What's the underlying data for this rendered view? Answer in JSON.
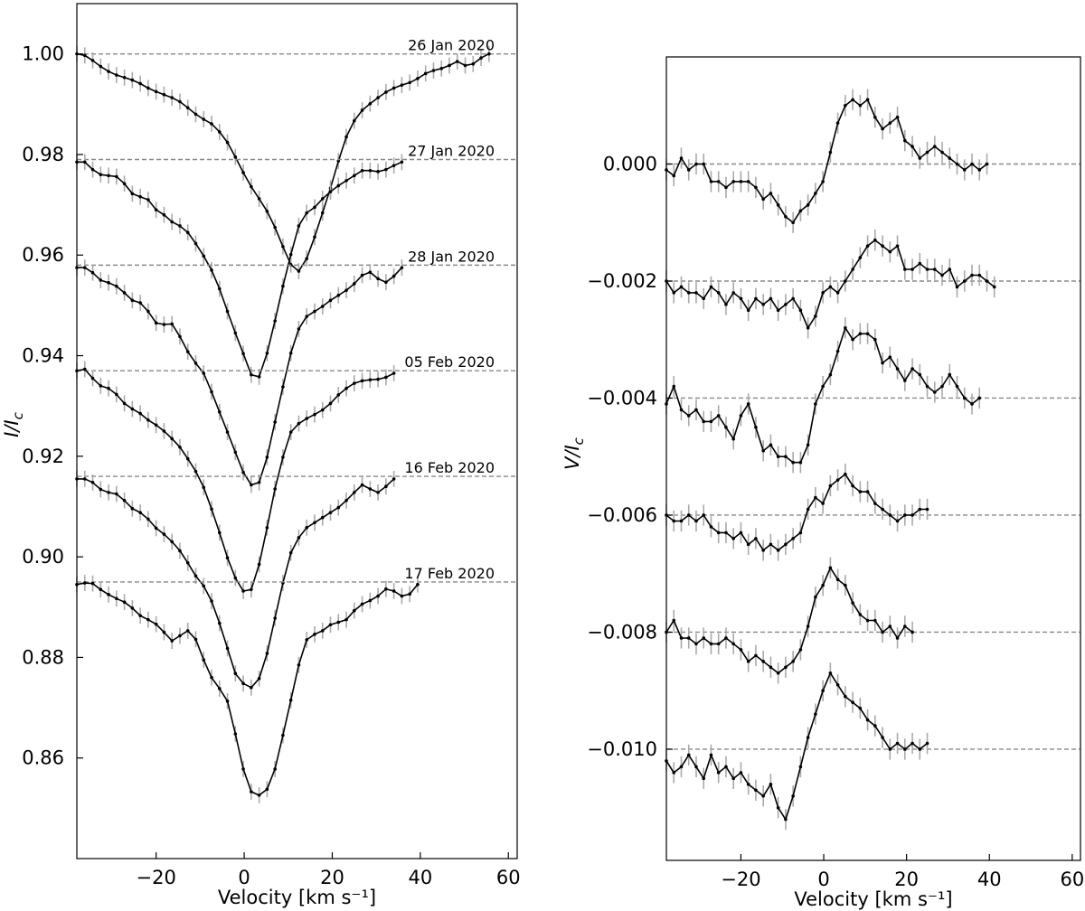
{
  "chart_data": [
    {
      "type": "line",
      "panel": "left",
      "xlabel": "Velocity [km s⁻¹]",
      "ylabel": "I/I",
      "ylabel_sub": "c",
      "xlim": [
        -38,
        62
      ],
      "ylim": [
        0.84,
        1.01
      ],
      "xticks": [
        -20,
        0,
        20,
        40,
        60
      ],
      "xtick_labels": [
        "−20",
        "0",
        "20",
        "40",
        "60"
      ],
      "yticks": [
        0.86,
        0.88,
        0.9,
        0.92,
        0.94,
        0.96,
        0.98,
        1.0
      ],
      "ytick_labels": [
        "0.86",
        "0.88",
        "0.90",
        "0.92",
        "0.94",
        "0.96",
        "0.98",
        "1.00"
      ],
      "grid": false,
      "error_bar": 0.0016,
      "vel_start": -38,
      "vel_step": 1.8,
      "series": [
        {
          "name": "26 Jan 2020",
          "baseline": 1.0,
          "values": [
            1.0,
            0.9997,
            0.9987,
            0.9975,
            0.9965,
            0.9958,
            0.9953,
            0.9948,
            0.9941,
            0.9932,
            0.9925,
            0.9919,
            0.9913,
            0.9905,
            0.9893,
            0.988,
            0.987,
            0.9861,
            0.9845,
            0.9824,
            0.9795,
            0.9764,
            0.9736,
            0.9712,
            0.9687,
            0.9655,
            0.9617,
            0.9581,
            0.9568,
            0.9593,
            0.9636,
            0.9684,
            0.9733,
            0.9787,
            0.9835,
            0.9867,
            0.9888,
            0.9901,
            0.9913,
            0.9924,
            0.9932,
            0.9938,
            0.9943,
            0.9951,
            0.9961,
            0.9967,
            0.9971,
            0.9977,
            0.9985,
            0.9977,
            0.998,
            0.9992,
            1.0
          ]
        },
        {
          "name": "27 Jan 2020",
          "baseline": 0.979,
          "values": [
            0.9785,
            0.9785,
            0.977,
            0.976,
            0.9758,
            0.9756,
            0.9742,
            0.9722,
            0.9716,
            0.971,
            0.969,
            0.968,
            0.9666,
            0.9658,
            0.9645,
            0.9623,
            0.9598,
            0.957,
            0.9533,
            0.9488,
            0.9445,
            0.9404,
            0.9362,
            0.9358,
            0.9405,
            0.9469,
            0.9538,
            0.9601,
            0.9658,
            0.9684,
            0.9695,
            0.9712,
            0.9726,
            0.9738,
            0.9748,
            0.9758,
            0.9768,
            0.9768,
            0.9766,
            0.977,
            0.9778,
            0.9785
          ]
        },
        {
          "name": "28 Jan 2020",
          "baseline": 0.958,
          "values": [
            0.9575,
            0.9575,
            0.9565,
            0.955,
            0.9545,
            0.9538,
            0.9525,
            0.951,
            0.9505,
            0.9488,
            0.9465,
            0.9462,
            0.9463,
            0.9438,
            0.9408,
            0.9385,
            0.9365,
            0.9328,
            0.9288,
            0.9248,
            0.9208,
            0.9168,
            0.9143,
            0.9148,
            0.9198,
            0.9268,
            0.9338,
            0.9405,
            0.9453,
            0.9478,
            0.9488,
            0.9498,
            0.951,
            0.952,
            0.953,
            0.9543,
            0.956,
            0.9566,
            0.9553,
            0.9546,
            0.9558,
            0.9575
          ]
        },
        {
          "name": "05 Feb 2020",
          "baseline": 0.937,
          "values": [
            0.937,
            0.9373,
            0.9355,
            0.934,
            0.9335,
            0.9323,
            0.9305,
            0.9294,
            0.9285,
            0.9272,
            0.9262,
            0.925,
            0.9235,
            0.9218,
            0.9195,
            0.917,
            0.9138,
            0.9095,
            0.9048,
            0.8998,
            0.8958,
            0.8932,
            0.8935,
            0.8985,
            0.9058,
            0.9135,
            0.9198,
            0.9248,
            0.9265,
            0.9275,
            0.9283,
            0.9292,
            0.9305,
            0.9322,
            0.9335,
            0.9345,
            0.935,
            0.9352,
            0.9353,
            0.9357,
            0.9365
          ]
        },
        {
          "name": "16 Feb 2020",
          "baseline": 0.916,
          "values": [
            0.9155,
            0.9155,
            0.9148,
            0.9134,
            0.9128,
            0.9125,
            0.9112,
            0.9096,
            0.9088,
            0.9075,
            0.9057,
            0.9045,
            0.903,
            0.9012,
            0.8988,
            0.8962,
            0.8942,
            0.8912,
            0.8868,
            0.8818,
            0.8768,
            0.8748,
            0.874,
            0.8758,
            0.8808,
            0.8878,
            0.8948,
            0.9008,
            0.9038,
            0.9058,
            0.9068,
            0.9078,
            0.9088,
            0.9098,
            0.9112,
            0.9128,
            0.9143,
            0.9135,
            0.9128,
            0.914,
            0.9155
          ]
        },
        {
          "name": "17 Feb 2020",
          "baseline": 0.895,
          "values": [
            0.8945,
            0.8948,
            0.8947,
            0.8935,
            0.8925,
            0.8917,
            0.891,
            0.8898,
            0.8883,
            0.8875,
            0.8866,
            0.885,
            0.8833,
            0.8843,
            0.8853,
            0.8836,
            0.8795,
            0.876,
            0.8738,
            0.8713,
            0.8648,
            0.8578,
            0.8533,
            0.8526,
            0.8538,
            0.8578,
            0.8645,
            0.8715,
            0.8785,
            0.8835,
            0.8846,
            0.8853,
            0.8865,
            0.887,
            0.8875,
            0.8893,
            0.8906,
            0.8913,
            0.8922,
            0.8936,
            0.8932,
            0.8922,
            0.8926,
            0.8945
          ]
        }
      ]
    },
    {
      "type": "line",
      "panel": "right",
      "xlabel": "Velocity [km s⁻¹]",
      "ylabel": "V/I",
      "ylabel_sub": "c",
      "xlim": [
        -38,
        62
      ],
      "ylim": [
        -0.0119,
        0.00183
      ],
      "xticks": [
        -20,
        0,
        20,
        40,
        60
      ],
      "xtick_labels": [
        "−20",
        "0",
        "20",
        "40",
        "60"
      ],
      "yticks": [
        0.0,
        -0.002,
        -0.004,
        -0.006,
        -0.008,
        -0.01
      ],
      "ytick_labels": [
        "0.000",
        "−0.002",
        "−0.004",
        "−0.006",
        "−0.008",
        "−0.010"
      ],
      "grid": false,
      "error_bar": 0.00018,
      "vel_start": -38,
      "vel_step": 1.8,
      "series": [
        {
          "name": "",
          "baseline": 0.0,
          "values": [
            -0.0001,
            -0.0002,
            0.0001,
            -0.0001,
            0.0,
            0.0,
            -0.0003,
            -0.0003,
            -0.0004,
            -0.0003,
            -0.0003,
            -0.0003,
            -0.0004,
            -0.0006,
            -0.0005,
            -0.0007,
            -0.0009,
            -0.001,
            -0.0008,
            -0.0007,
            -0.0005,
            -0.0003,
            0.0002,
            0.0007,
            0.001,
            0.0011,
            0.001,
            0.0011,
            0.0008,
            0.0006,
            0.0007,
            0.0008,
            0.0004,
            0.0003,
            0.0001,
            0.0002,
            0.0003,
            0.0002,
            0.0001,
            0.0,
            -0.0001,
            0.0,
            -0.0001,
            0.0
          ]
        },
        {
          "name": "",
          "baseline": -0.002,
          "values": [
            -0.002,
            -0.0022,
            -0.0021,
            -0.0022,
            -0.0022,
            -0.0023,
            -0.0021,
            -0.0022,
            -0.0024,
            -0.0022,
            -0.0023,
            -0.0025,
            -0.0023,
            -0.0024,
            -0.0023,
            -0.0025,
            -0.0024,
            -0.0023,
            -0.0025,
            -0.0028,
            -0.0026,
            -0.0022,
            -0.0021,
            -0.0022,
            -0.002,
            -0.0018,
            -0.0016,
            -0.0014,
            -0.0013,
            -0.0014,
            -0.0015,
            -0.0014,
            -0.0018,
            -0.0018,
            -0.0017,
            -0.0018,
            -0.0018,
            -0.0019,
            -0.0018,
            -0.0021,
            -0.002,
            -0.0019,
            -0.0019,
            -0.002,
            -0.0021
          ]
        },
        {
          "name": "",
          "baseline": -0.004,
          "values": [
            -0.0041,
            -0.0038,
            -0.0042,
            -0.0043,
            -0.0042,
            -0.0044,
            -0.0044,
            -0.0043,
            -0.0045,
            -0.0047,
            -0.0043,
            -0.0041,
            -0.0045,
            -0.0049,
            -0.0048,
            -0.005,
            -0.005,
            -0.0051,
            -0.0051,
            -0.0048,
            -0.0041,
            -0.0038,
            -0.0036,
            -0.0032,
            -0.0028,
            -0.003,
            -0.0029,
            -0.0029,
            -0.003,
            -0.0034,
            -0.0033,
            -0.0035,
            -0.0037,
            -0.0035,
            -0.0036,
            -0.0038,
            -0.0039,
            -0.0038,
            -0.0036,
            -0.0038,
            -0.004,
            -0.0041,
            -0.004
          ]
        },
        {
          "name": "",
          "baseline": -0.006,
          "values": [
            -0.006,
            -0.0061,
            -0.0061,
            -0.006,
            -0.0061,
            -0.006,
            -0.0062,
            -0.0063,
            -0.0063,
            -0.0064,
            -0.0063,
            -0.0065,
            -0.0064,
            -0.0066,
            -0.0065,
            -0.0066,
            -0.0065,
            -0.0064,
            -0.0063,
            -0.0059,
            -0.0057,
            -0.0058,
            -0.0055,
            -0.0054,
            -0.0053,
            -0.0055,
            -0.0056,
            -0.0056,
            -0.0058,
            -0.0059,
            -0.006,
            -0.0061,
            -0.006,
            -0.006,
            -0.0059,
            -0.0059
          ]
        },
        {
          "name": "",
          "baseline": -0.008,
          "values": [
            -0.008,
            -0.0078,
            -0.0081,
            -0.0081,
            -0.0082,
            -0.0081,
            -0.0082,
            -0.0082,
            -0.0081,
            -0.0082,
            -0.0083,
            -0.0085,
            -0.0084,
            -0.0085,
            -0.0086,
            -0.0087,
            -0.0086,
            -0.0085,
            -0.0083,
            -0.0079,
            -0.0074,
            -0.0072,
            -0.0069,
            -0.0071,
            -0.0072,
            -0.0075,
            -0.0077,
            -0.0078,
            -0.0078,
            -0.008,
            -0.0079,
            -0.0081,
            -0.0079,
            -0.008
          ]
        },
        {
          "name": "",
          "baseline": -0.01,
          "values": [
            -0.0102,
            -0.0104,
            -0.0103,
            -0.0101,
            -0.0103,
            -0.0105,
            -0.0101,
            -0.0104,
            -0.0103,
            -0.0105,
            -0.0104,
            -0.0106,
            -0.0107,
            -0.0108,
            -0.0106,
            -0.011,
            -0.0112,
            -0.0108,
            -0.0103,
            -0.0098,
            -0.0094,
            -0.009,
            -0.0087,
            -0.0089,
            -0.0091,
            -0.0092,
            -0.0093,
            -0.0095,
            -0.0096,
            -0.0098,
            -0.01,
            -0.0099,
            -0.01,
            -0.0099,
            -0.01,
            -0.0099
          ]
        }
      ]
    }
  ]
}
